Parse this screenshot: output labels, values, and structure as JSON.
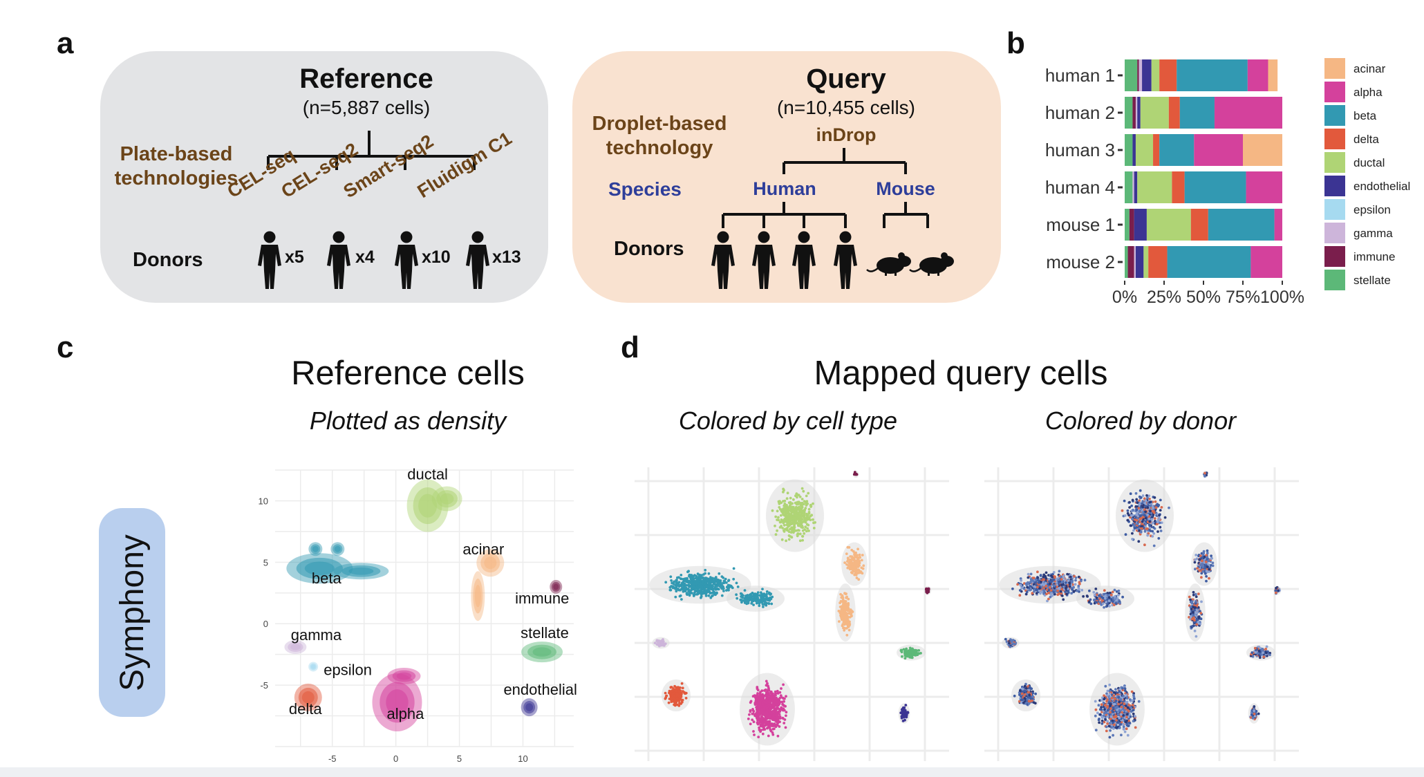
{
  "panel_labels": {
    "a": "a",
    "b": "b",
    "c": "c",
    "d": "d"
  },
  "reference": {
    "title": "Reference",
    "subtitle": "(n=5,887 cells)",
    "platform_label": "Plate-based technologies",
    "technologies": [
      "CEL-seq",
      "CEL-seq2",
      "Smart-seq2",
      "Fluidigm C1"
    ],
    "donors_label": "Donors",
    "donor_counts": [
      "x5",
      "x4",
      "x10",
      "x13"
    ]
  },
  "query": {
    "title": "Query",
    "subtitle": "(n=10,455 cells)",
    "platform_label": "Droplet-based technology",
    "technology": "inDrop",
    "species_label": "Species",
    "species": [
      "Human",
      "Mouse"
    ],
    "donors_label": "Donors"
  },
  "colors": {
    "acinar": "#f5b784",
    "alpha": "#d4419c",
    "beta": "#3299b2",
    "delta": "#e2593c",
    "ductal": "#afd475",
    "endothelial": "#3b3493",
    "epsilon": "#a6daf0",
    "gamma": "#cdb5da",
    "immune": "#7a1e4c",
    "stellate": "#5cb878",
    "reference_box": "#e3e4e6",
    "query_box": "#f9e2d0",
    "symphony_box": "#b9cfee"
  },
  "chart_data": [
    {
      "type": "bar",
      "orientation": "horizontal",
      "stacked": true,
      "categories": [
        "human 1",
        "human 2",
        "human 3",
        "human 4",
        "mouse 1",
        "mouse 2"
      ],
      "x_tick_labels": [
        "0%",
        "25%",
        "50%",
        "75%",
        "100%"
      ],
      "xlim": [
        0,
        1
      ],
      "legend_position": "right",
      "series": [
        {
          "name": "stellate",
          "values": [
            0.08,
            0.05,
            0.05,
            0.05,
            0.03,
            0.02
          ]
        },
        {
          "name": "immune",
          "values": [
            0.01,
            0.02,
            0.0,
            0.0,
            0.03,
            0.04
          ]
        },
        {
          "name": "gamma",
          "values": [
            0.02,
            0.01,
            0.0,
            0.01,
            0.0,
            0.01
          ]
        },
        {
          "name": "epsilon",
          "values": [
            0.0,
            0.0,
            0.0,
            0.0,
            0.0,
            0.0
          ]
        },
        {
          "name": "endothelial",
          "values": [
            0.06,
            0.02,
            0.02,
            0.02,
            0.08,
            0.05
          ]
        },
        {
          "name": "ductal",
          "values": [
            0.05,
            0.18,
            0.11,
            0.22,
            0.28,
            0.03
          ]
        },
        {
          "name": "delta",
          "values": [
            0.11,
            0.07,
            0.04,
            0.08,
            0.11,
            0.12
          ]
        },
        {
          "name": "beta",
          "values": [
            0.45,
            0.22,
            0.22,
            0.39,
            0.42,
            0.53
          ]
        },
        {
          "name": "alpha",
          "values": [
            0.13,
            0.43,
            0.31,
            0.23,
            0.05,
            0.2
          ]
        },
        {
          "name": "acinar",
          "values": [
            0.06,
            0.0,
            0.25,
            0.0,
            0.0,
            0.0
          ]
        }
      ]
    },
    {
      "type": "scatter",
      "title": "Reference cells",
      "subtitle": "Plotted as density",
      "x_ticks": [
        "-5",
        "0",
        "5",
        "10"
      ],
      "y_ticks": [
        "10",
        "5",
        "0",
        "-5"
      ],
      "xlim": [
        -9.5,
        14
      ],
      "ylim": [
        -10,
        12.5
      ],
      "clusters": [
        {
          "name": "ductal",
          "x": 2.5,
          "y": 9.6
        },
        {
          "name": "beta",
          "x": -6.0,
          "y": 4.5
        },
        {
          "name": "acinar",
          "x": 7.0,
          "y": 4.5
        },
        {
          "name": "immune",
          "x": 12.6,
          "y": 3.0
        },
        {
          "name": "gamma",
          "x": -7.9,
          "y": -1.9
        },
        {
          "name": "epsilon",
          "x": -6.5,
          "y": -3.5
        },
        {
          "name": "stellate",
          "x": 11.5,
          "y": -2.3
        },
        {
          "name": "delta",
          "x": -6.9,
          "y": -6.0
        },
        {
          "name": "alpha",
          "x": 0.1,
          "y": -6.4
        },
        {
          "name": "endothelial",
          "x": 10.5,
          "y": -6.8
        }
      ]
    },
    {
      "type": "scatter",
      "title": "Mapped query cells",
      "subtitle": "Colored by cell type",
      "point_colors": "cell type"
    },
    {
      "type": "scatter",
      "subtitle": "Colored by donor",
      "point_colors": "donor"
    }
  ],
  "panel_c": {
    "method_label": "Symphony"
  }
}
